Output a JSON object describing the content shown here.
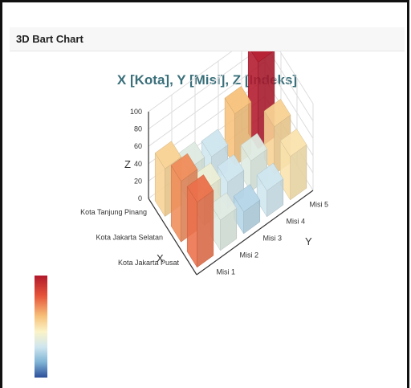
{
  "card": {
    "title": "3D Bart Chart"
  },
  "chart_data": {
    "type": "bar",
    "title": "X [Kota], Y [Misi], Z [Indeks]",
    "xlabel": "X",
    "ylabel": "Y",
    "zlabel": "Z",
    "x_categories": [
      "Kota Jakarta Pusat",
      "Kota Jakarta Selatan",
      "Kota Tanjung Pinang"
    ],
    "y_categories": [
      "Misi 1",
      "Misi 2",
      "Misi 3",
      "Misi 4",
      "Misi 5"
    ],
    "z_ticks": [
      "0",
      "20",
      "40",
      "60",
      "80",
      "100"
    ],
    "zlim": [
      0,
      100
    ],
    "colorscale": "RdYlBu reversed",
    "series": [
      {
        "values": [
          75,
          35,
          25,
          30,
          50
        ]
      },
      {
        "values": [
          70,
          40,
          30,
          35,
          55
        ]
      },
      {
        "values": [
          55,
          35,
          30,
          60,
          100
        ]
      }
    ],
    "colors": {
      "axis": "#333333",
      "grid": "#dddddd",
      "title": "#3a6f7a"
    }
  }
}
